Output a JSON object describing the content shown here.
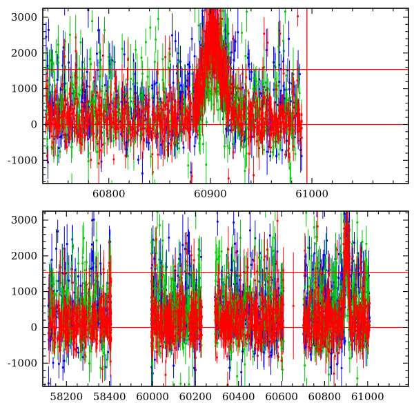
{
  "figure": {
    "background": "#ffffff",
    "frame_color": "#000000",
    "reference_color": "#ff0000"
  },
  "chart_data": [
    {
      "id": "top",
      "type": "scatter",
      "description": "Three-band photometric light curve with error bars, zoomed epoch with flare near MJD 60903",
      "seed": 11,
      "title": "",
      "xlabel": "",
      "ylabel": "",
      "x_axis": {
        "lim": [
          60735,
          61095
        ],
        "major": [
          {
            "v": 60800,
            "label": "60800"
          },
          {
            "v": 60900,
            "label": "60900"
          },
          {
            "v": 61000,
            "label": "61000"
          }
        ],
        "minor_step": 20
      },
      "y_axis": {
        "lim": [
          -1650,
          3250
        ],
        "major": [
          {
            "v": -1000,
            "label": "-1000"
          },
          {
            "v": 0,
            "label": "0"
          },
          {
            "v": 1000,
            "label": "1000"
          },
          {
            "v": 2000,
            "label": "2000"
          },
          {
            "v": 3000,
            "label": "3000"
          }
        ],
        "minor_step": 200
      },
      "ref_lines": {
        "color": "#ff0000",
        "horizontal": [
          0,
          1540
        ],
        "vertical": [
          60995
        ]
      },
      "flare": {
        "center": 60903,
        "sigma": 9,
        "amp": 2900
      },
      "series": [
        {
          "name": "blue",
          "color": "#0000e6",
          "mean": 250,
          "sd": 480,
          "p_out": 0.34,
          "out_amp": 1000,
          "p_neg": 0.07,
          "neg_amp": 850,
          "err0": 120,
          "err1": 240,
          "flare": 0.85,
          "clusters": [
            [
              60738,
              60990,
              560
            ],
            [
              60886,
              60924,
              110
            ]
          ]
        },
        {
          "name": "green",
          "color": "#00c800",
          "mean": 250,
          "sd": 480,
          "p_out": 0.34,
          "out_amp": 1050,
          "p_neg": 0.1,
          "neg_amp": 900,
          "err0": 120,
          "err1": 240,
          "flare": 0.55,
          "clusters": [
            [
              60738,
              60990,
              560
            ],
            [
              60888,
              60920,
              80
            ]
          ]
        },
        {
          "name": "red",
          "color": "#ff0000",
          "mean": 120,
          "sd": 310,
          "p_out": 0.16,
          "out_amp": 950,
          "p_neg": 0.05,
          "neg_amp": 700,
          "err0": 110,
          "err1": 210,
          "flare": 1.0,
          "clusters": [
            [
              60738,
              60990,
              760
            ],
            [
              60884,
              60924,
              170
            ]
          ]
        }
      ]
    },
    {
      "id": "bottom",
      "type": "scatter",
      "description": "Full multi-season light curve with broken MJD axis (58200-58400, 60000-61000), seasonal clusters of points",
      "seed": 23,
      "title": "",
      "xlabel": "",
      "ylabel": "",
      "x_axis": {
        "segments": [
          [
            58000,
            58400,
            -1,
            1
          ],
          [
            58400,
            60000,
            1,
            2
          ],
          [
            60000,
            61400,
            2,
            9
          ]
        ],
        "plim": [
          -0.55,
          7.95
        ],
        "major": [
          {
            "p": 0,
            "label": "58200"
          },
          {
            "p": 1,
            "label": "58400"
          },
          {
            "p": 2,
            "label": "60000"
          },
          {
            "p": 3,
            "label": "60200"
          },
          {
            "p": 4,
            "label": "60400"
          },
          {
            "p": 5,
            "label": "60600"
          },
          {
            "p": 6,
            "label": "60800"
          },
          {
            "p": 7,
            "label": "61000"
          }
        ],
        "minor_p_step": 0.25
      },
      "y_axis": {
        "lim": [
          -1650,
          3250
        ],
        "major": [
          {
            "v": -1000,
            "label": "-1000"
          },
          {
            "v": 0,
            "label": "0"
          },
          {
            "v": 1000,
            "label": "1000"
          },
          {
            "v": 2000,
            "label": "2000"
          },
          {
            "v": 3000,
            "label": "3000"
          }
        ],
        "minor_step": 200
      },
      "ref_lines": {
        "color": "#ff0000",
        "horizontal": [
          0,
          1540
        ],
        "vertical": []
      },
      "flare": {
        "center": 60903,
        "sigma": 9,
        "amp": 2900
      },
      "series": [
        {
          "name": "blue",
          "color": "#0000e6",
          "mean": 250,
          "sd": 480,
          "p_out": 0.34,
          "out_amp": 1000,
          "p_neg": 0.07,
          "neg_amp": 850,
          "err0": 120,
          "err1": 240,
          "flare": 0.85,
          "clusters": [
            [
              58115,
              58460,
              230
            ],
            [
              59960,
              60230,
              230
            ],
            [
              60290,
              60610,
              260
            ],
            [
              60700,
              61010,
              290
            ],
            [
              60890,
              60918,
              40
            ]
          ]
        },
        {
          "name": "green",
          "color": "#00c800",
          "mean": 250,
          "sd": 480,
          "p_out": 0.34,
          "out_amp": 1050,
          "p_neg": 0.1,
          "neg_amp": 900,
          "err0": 120,
          "err1": 240,
          "flare": 0.55,
          "clusters": [
            [
              58115,
              58460,
              230
            ],
            [
              59960,
              60230,
              230
            ],
            [
              60290,
              60610,
              260
            ],
            [
              60700,
              61010,
              290
            ]
          ]
        },
        {
          "name": "red",
          "color": "#ff0000",
          "mean": 120,
          "sd": 310,
          "p_out": 0.16,
          "out_amp": 950,
          "p_neg": 0.05,
          "neg_amp": 700,
          "err0": 110,
          "err1": 210,
          "flare": 1.0,
          "clusters": [
            [
              58115,
              58460,
              300
            ],
            [
              59960,
              60230,
              300
            ],
            [
              60290,
              60610,
              340
            ],
            [
              60700,
              61010,
              380
            ],
            [
              60886,
              60922,
              60
            ]
          ],
          "isolated": [
            {
              "x": 60655,
              "y": 600,
              "err": 1500
            }
          ]
        }
      ]
    }
  ]
}
